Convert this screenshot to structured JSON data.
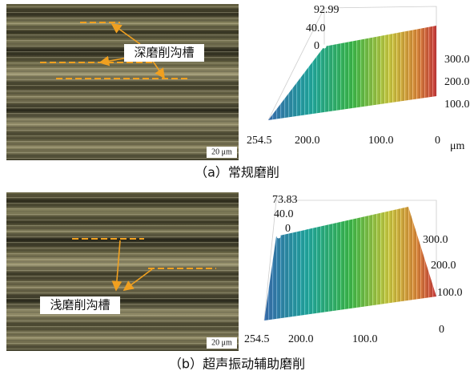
{
  "panels": [
    {
      "micrograph": {
        "annotation": "深磨削沟槽",
        "scale_bar": "20 μm"
      },
      "surface": {
        "z_labels": [
          "92.99",
          "40.0",
          "0"
        ],
        "y_labels": [
          "300.0",
          "200.0",
          "100.0"
        ],
        "x_labels": [
          "254.5",
          "200.0",
          "100.0",
          "0"
        ],
        "unit": "μm"
      },
      "caption": "（a）常规磨削"
    },
    {
      "micrograph": {
        "annotation": "浅磨削沟槽",
        "scale_bar": "20 μm"
      },
      "surface": {
        "z_labels": [
          "73.83",
          "40.0",
          "0"
        ],
        "y_labels": [
          "300.0",
          "200.0",
          "100.0"
        ],
        "x_labels": [
          "254.5",
          "200.0",
          "100.0",
          "0"
        ]
      },
      "caption": "（b）超声振动辅助磨削"
    }
  ]
}
